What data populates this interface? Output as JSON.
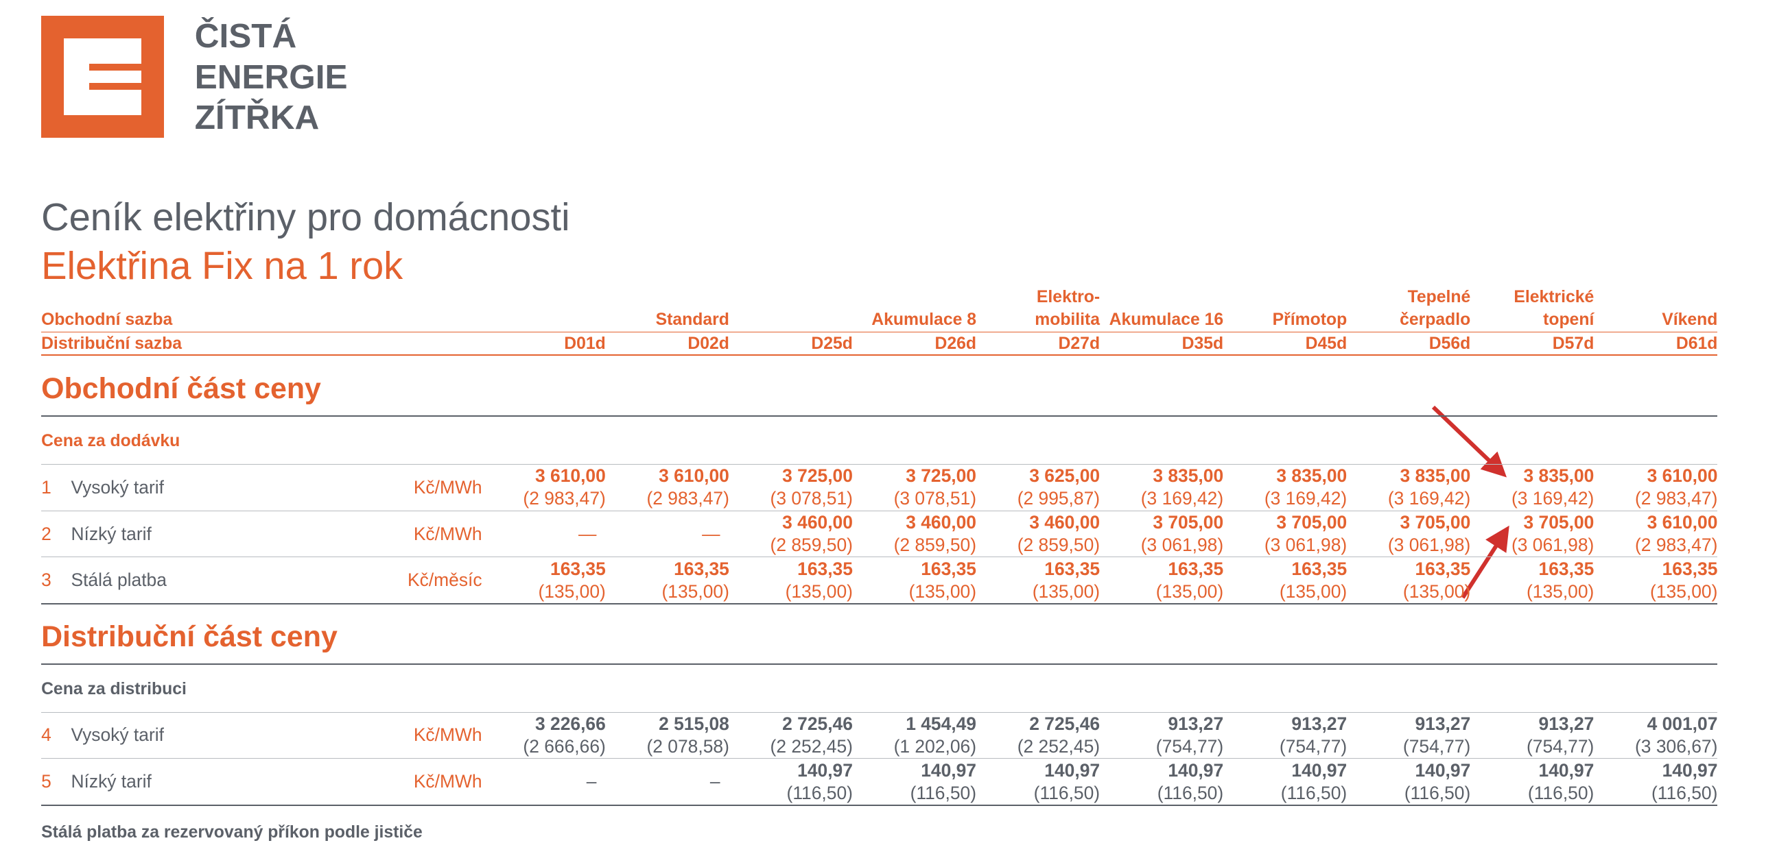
{
  "logo": {
    "lines": [
      "ČISTÁ",
      "ENERGIE",
      "ZÍTŘKA"
    ]
  },
  "header": {
    "title": "Ceník elektřiny pro domácnosti",
    "subtitle": "Elektřina Fix na 1 rok"
  },
  "table": {
    "commercial_label": "Obchodní sazba",
    "distribution_label": "Distribuční sazba",
    "groups": [
      {
        "name": [
          "Standard"
        ],
        "codes": [
          "D01d",
          "D02d"
        ]
      },
      {
        "name": [
          "Akumulace 8"
        ],
        "codes": [
          "D25d",
          "D26d"
        ]
      },
      {
        "name": [
          "Elektro-",
          "mobilita"
        ],
        "codes": [
          "D27d"
        ]
      },
      {
        "name": [
          "Akumulace 16"
        ],
        "codes": [
          "D35d"
        ]
      },
      {
        "name": [
          "Přímotop"
        ],
        "codes": [
          "D45d"
        ]
      },
      {
        "name": [
          "Tepelné",
          "čerpadlo"
        ],
        "codes": [
          "D56d"
        ]
      },
      {
        "name": [
          "Elektrické",
          "topení"
        ],
        "codes": [
          "D57d"
        ]
      },
      {
        "name": [
          "Víkend"
        ],
        "codes": [
          "D61d"
        ]
      }
    ],
    "sections": [
      {
        "title": "Obchodní část ceny",
        "subtitle": "Cena za dodávku",
        "value_color": "#e4622f",
        "rows": [
          {
            "num": "1",
            "label": "Vysoký tarif",
            "unit": "Kč/MWh",
            "cells": [
              {
                "value": "3 610,00",
                "note": "(2 983,47)"
              },
              {
                "value": "3 610,00",
                "note": "(2 983,47)"
              },
              {
                "value": "3 725,00",
                "note": "(3 078,51)"
              },
              {
                "value": "3 725,00",
                "note": "(3 078,51)"
              },
              {
                "value": "3 625,00",
                "note": "(2 995,87)"
              },
              {
                "value": "3 835,00",
                "note": "(3 169,42)"
              },
              {
                "value": "3 835,00",
                "note": "(3 169,42)"
              },
              {
                "value": "3 835,00",
                "note": "(3 169,42)"
              },
              {
                "value": "3 835,00",
                "note": "(3 169,42)"
              },
              {
                "value": "3 610,00",
                "note": "(2 983,47)"
              }
            ]
          },
          {
            "num": "2",
            "label": "Nízký tarif",
            "unit": "Kč/MWh",
            "cells": [
              {
                "value": "—"
              },
              {
                "value": "—"
              },
              {
                "value": "3 460,00",
                "note": "(2 859,50)"
              },
              {
                "value": "3 460,00",
                "note": "(2 859,50)"
              },
              {
                "value": "3 460,00",
                "note": "(2 859,50)"
              },
              {
                "value": "3 705,00",
                "note": "(3 061,98)"
              },
              {
                "value": "3 705,00",
                "note": "(3 061,98)"
              },
              {
                "value": "3 705,00",
                "note": "(3 061,98)"
              },
              {
                "value": "3 705,00",
                "note": "(3 061,98)"
              },
              {
                "value": "3 610,00",
                "note": "(2 983,47)"
              }
            ]
          },
          {
            "num": "3",
            "label": "Stálá platba",
            "unit": "Kč/měsíc",
            "cells": [
              {
                "value": "163,35",
                "note": "(135,00)"
              },
              {
                "value": "163,35",
                "note": "(135,00)"
              },
              {
                "value": "163,35",
                "note": "(135,00)"
              },
              {
                "value": "163,35",
                "note": "(135,00)"
              },
              {
                "value": "163,35",
                "note": "(135,00)"
              },
              {
                "value": "163,35",
                "note": "(135,00)"
              },
              {
                "value": "163,35",
                "note": "(135,00)"
              },
              {
                "value": "163,35",
                "note": "(135,00)"
              },
              {
                "value": "163,35",
                "note": "(135,00)"
              },
              {
                "value": "163,35",
                "note": "(135,00)"
              }
            ]
          }
        ]
      },
      {
        "title": "Distribuční část ceny",
        "subtitle": "Cena za distribuci",
        "value_color": "#5b6068",
        "rows": [
          {
            "num": "4",
            "label": "Vysoký tarif",
            "unit": "Kč/MWh",
            "cells": [
              {
                "value": "3 226,66",
                "note": "(2 666,66)"
              },
              {
                "value": "2 515,08",
                "note": "(2 078,58)"
              },
              {
                "value": "2 725,46",
                "note": "(2 252,45)"
              },
              {
                "value": "1 454,49",
                "note": "(1 202,06)"
              },
              {
                "value": "2 725,46",
                "note": "(2 252,45)"
              },
              {
                "value": "913,27",
                "note": "(754,77)"
              },
              {
                "value": "913,27",
                "note": "(754,77)"
              },
              {
                "value": "913,27",
                "note": "(754,77)"
              },
              {
                "value": "913,27",
                "note": "(754,77)"
              },
              {
                "value": "4 001,07",
                "note": "(3 306,67)"
              }
            ]
          },
          {
            "num": "5",
            "label": "Nízký tarif",
            "unit": "Kč/MWh",
            "cells": [
              {
                "value": "–"
              },
              {
                "value": "–"
              },
              {
                "value": "140,97",
                "note": "(116,50)"
              },
              {
                "value": "140,97",
                "note": "(116,50)"
              },
              {
                "value": "140,97",
                "note": "(116,50)"
              },
              {
                "value": "140,97",
                "note": "(116,50)"
              },
              {
                "value": "140,97",
                "note": "(116,50)"
              },
              {
                "value": "140,97",
                "note": "(116,50)"
              },
              {
                "value": "140,97",
                "note": "(116,50)"
              },
              {
                "value": "140,97",
                "note": "(116,50)"
              }
            ]
          }
        ]
      }
    ],
    "trailing_subtitle": "Stálá platba za rezervovaný příkon podle jističe"
  }
}
